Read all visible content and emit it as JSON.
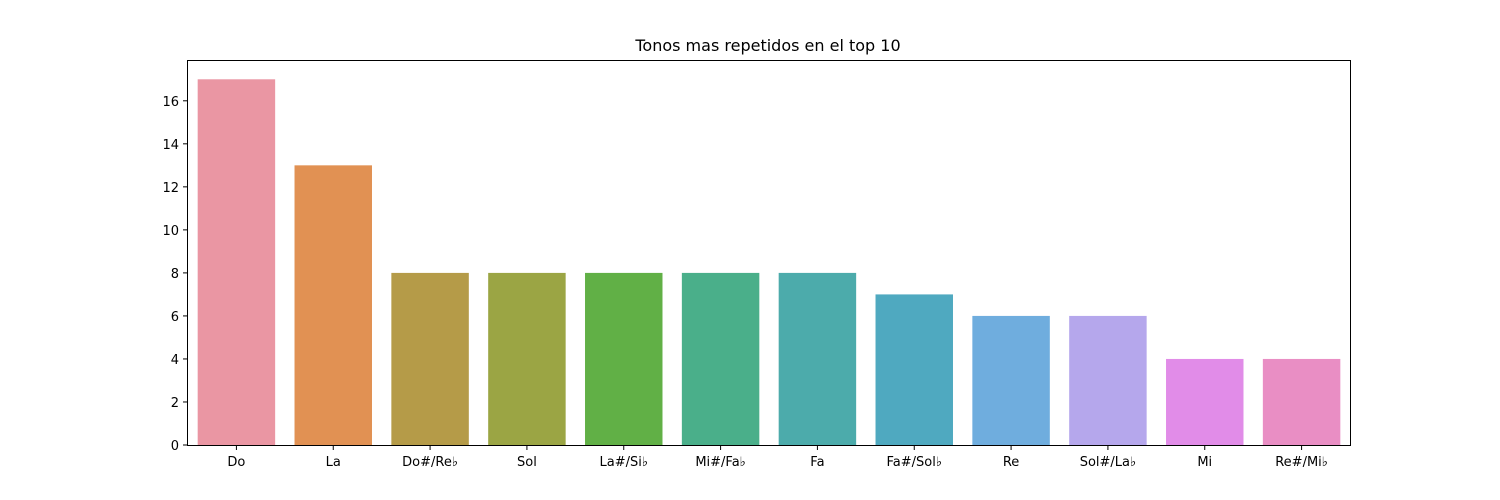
{
  "chart_data": {
    "type": "bar",
    "title": "Tonos mas repetidos en el top 10",
    "xlabel": "",
    "ylabel": "",
    "categories": [
      "Do",
      "La",
      "Do#/Re♭",
      "Sol",
      "La#/Si♭",
      "Mi#/Fa♭",
      "Fa",
      "Fa#/Sol♭",
      "Re",
      "Sol#/La♭",
      "Mi",
      "Re#/Mi♭"
    ],
    "values": [
      17,
      13,
      8,
      8,
      8,
      8,
      8,
      7,
      6,
      6,
      4,
      4
    ],
    "colors": [
      "#ea96a3",
      "#e19153",
      "#b59b48",
      "#9ba544",
      "#61b046",
      "#4aaf8a",
      "#4cabab",
      "#4fa9c0",
      "#6fadde",
      "#b5a7ec",
      "#e18ce8",
      "#e98ec4"
    ],
    "ylim": [
      0,
      17.85
    ],
    "yticks": [
      0,
      2,
      4,
      6,
      8,
      10,
      12,
      14,
      16
    ],
    "grid": false,
    "legend": "none"
  }
}
